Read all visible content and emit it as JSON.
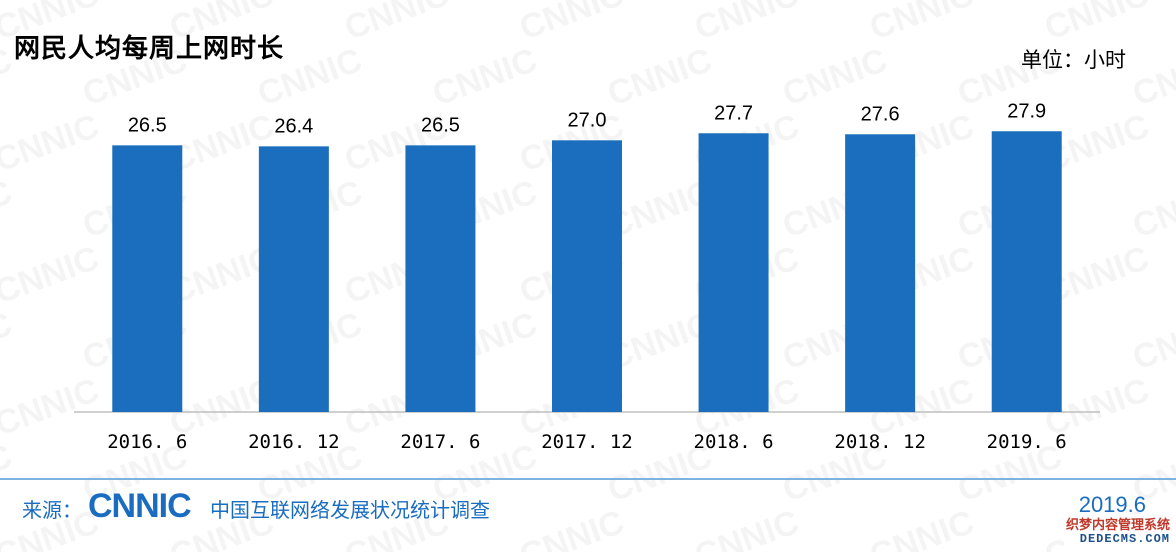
{
  "chart_data": {
    "type": "bar",
    "title": "网民人均每周上网时长",
    "unit": "单位：小时",
    "categories": [
      "2016. 6",
      "2016. 12",
      "2017. 6",
      "2017. 12",
      "2018. 6",
      "2018. 12",
      "2019. 6"
    ],
    "values": [
      26.5,
      26.4,
      26.5,
      27.0,
      27.7,
      27.6,
      27.9
    ],
    "value_labels": [
      "26.5",
      "26.4",
      "26.5",
      "27.0",
      "27.7",
      "27.6",
      "27.9"
    ],
    "ylim": [
      0,
      30
    ],
    "bar_color": "#1a6ebd",
    "grid": false,
    "legend": "none"
  },
  "watermark": "CNNIC",
  "footer": {
    "source_label": "来源：",
    "logo_text": "CNNIC",
    "org_name": "中国互联网络发展状况统计调查",
    "date": "2019.6"
  },
  "corner_badge": {
    "cn": "织梦内容管理系统",
    "en": "DEDECMS.COM"
  },
  "colors": {
    "brand_blue": "#1a6cc0",
    "bar": "#1a6ebd",
    "axis": "#bfbfbf"
  }
}
